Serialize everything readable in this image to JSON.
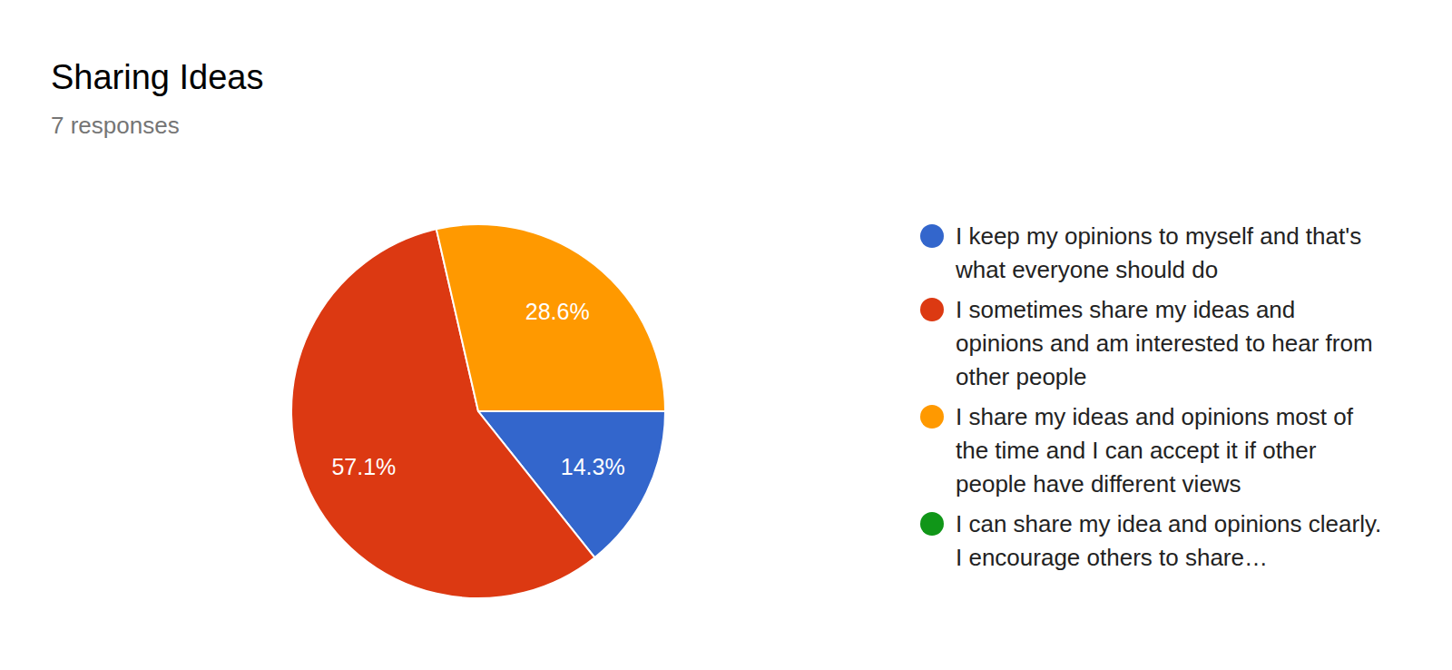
{
  "chart_data": {
    "type": "pie",
    "title": "Sharing Ideas",
    "subtitle": "7 responses",
    "categories": [
      "I keep my opinions to myself and that's what everyone should do",
      "I sometimes share my ideas and opinions and am interested to hear from other people",
      "I share my ideas and opinions most of the time and I can accept it if other people have different views",
      "I can share my idea and opinions clearly. I encourage others to share…"
    ],
    "values": [
      14.3,
      57.1,
      28.6,
      0
    ],
    "value_labels": [
      "14.3%",
      "57.1%",
      "28.6%",
      null
    ],
    "colors": [
      "#3366cc",
      "#dc3912",
      "#ff9900",
      "#109618"
    ],
    "data_labels": true,
    "legend": "right"
  }
}
